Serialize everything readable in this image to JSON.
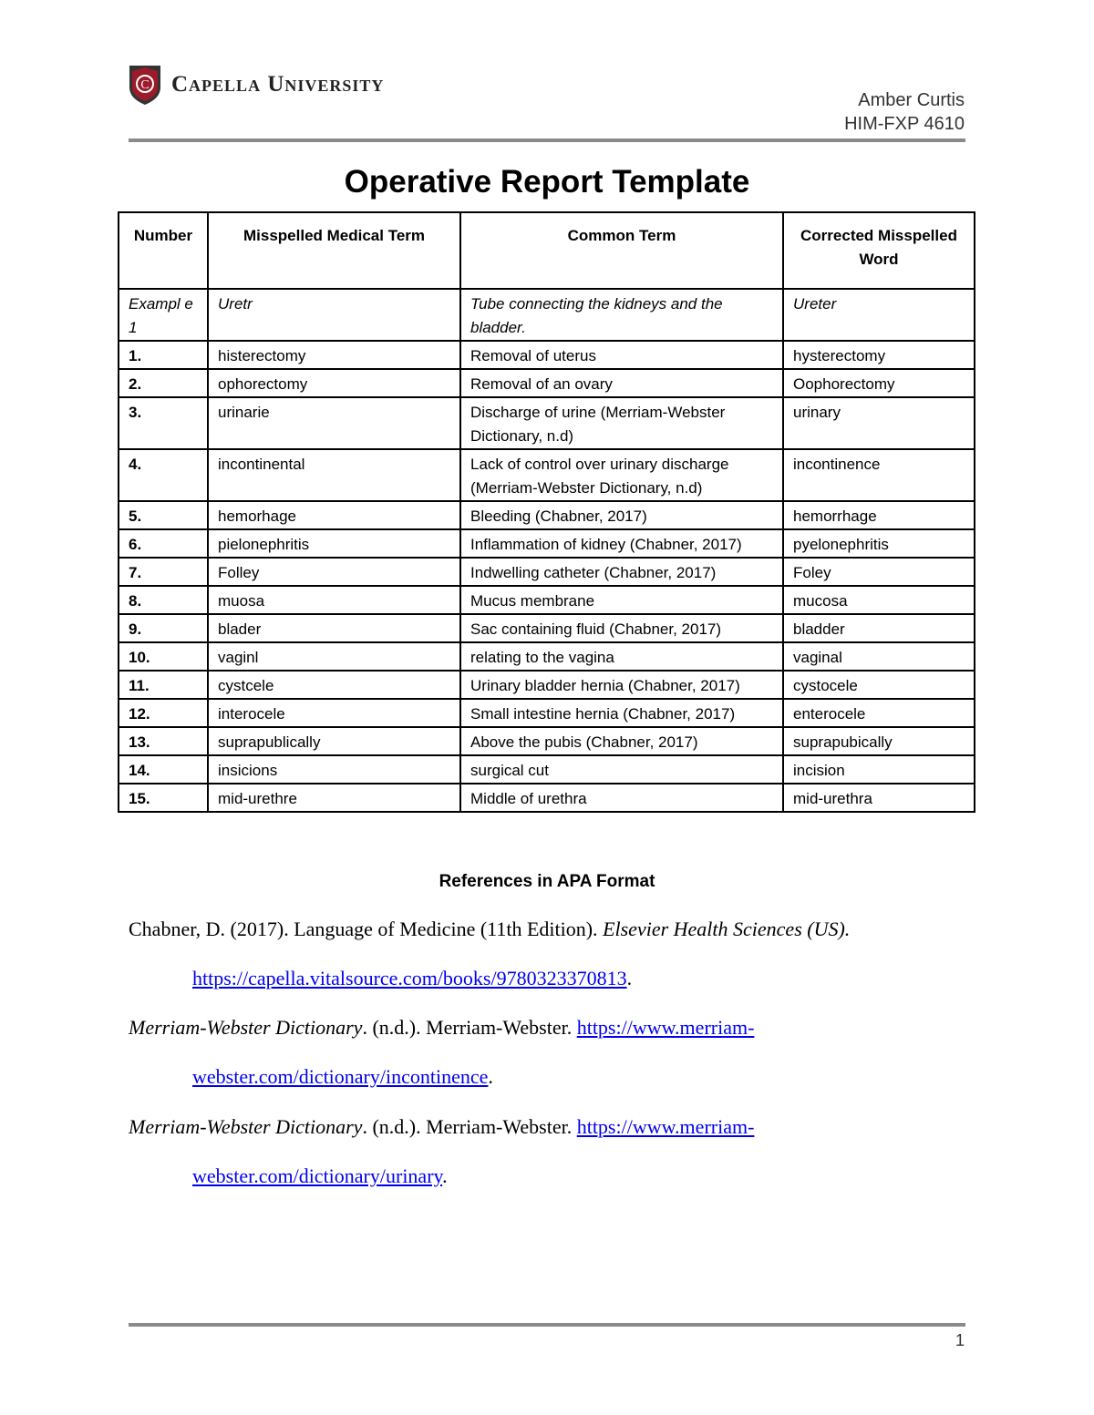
{
  "header": {
    "logo_text": "Capella University",
    "author": "Amber Curtis",
    "course": "HIM-FXP 4610"
  },
  "title": "Operative Report Template",
  "table": {
    "headers": [
      "Number",
      "Misspelled Medical Term",
      "Common Term",
      "Corrected Misspelled Word"
    ],
    "example": {
      "number": "Exampl e 1",
      "misspelled": "Uretr",
      "common": "Tube connecting the kidneys and the bladder.",
      "corrected": "Ureter"
    },
    "rows": [
      {
        "number": "1.",
        "misspelled": "histerectomy",
        "common": "Removal of uterus",
        "corrected": "hysterectomy"
      },
      {
        "number": "2.",
        "misspelled": "ophorectomy",
        "common": "Removal  of an ovary",
        "corrected": "Oophorectomy"
      },
      {
        "number": "3.",
        "misspelled": "urinarie",
        "common": "Discharge of urine (Merriam-Webster Dictionary, n.d)",
        "corrected": "urinary"
      },
      {
        "number": "4.",
        "misspelled": "incontinental",
        "common": "Lack of control over urinary discharge (Merriam-Webster Dictionary, n.d)",
        "corrected": "incontinence"
      },
      {
        "number": "5.",
        "misspelled": "hemorhage",
        "common": " Bleeding (Chabner, 2017)",
        "corrected": "hemorrhage"
      },
      {
        "number": "6.",
        "misspelled": "pielonephritis",
        "common": "Inflammation of kidney (Chabner, 2017)",
        "corrected": "pyelonephritis"
      },
      {
        "number": "7.",
        "misspelled": "Folley",
        "common": "Indwelling catheter (Chabner, 2017)",
        "corrected": "Foley"
      },
      {
        "number": "8.",
        "misspelled": "muosa",
        "common": "Mucus membrane",
        "corrected": "mucosa"
      },
      {
        "number": "9.",
        "misspelled": "blader",
        "common": "Sac containing fluid (Chabner, 2017)",
        "corrected": "bladder"
      },
      {
        "number": "10.",
        "misspelled": "vaginl",
        "common": "relating to the vagina",
        "corrected": "vaginal"
      },
      {
        "number": "11.",
        "misspelled": "cystcele",
        "common": "Urinary bladder hernia (Chabner, 2017)",
        "corrected": "cystocele"
      },
      {
        "number": "12.",
        "misspelled": "interocele",
        "common": "Small intestine hernia (Chabner, 2017)",
        "corrected": "enterocele"
      },
      {
        "number": "13.",
        "misspelled": "suprapublically",
        "common": "Above the pubis (Chabner, 2017)",
        "corrected": "suprapubically"
      },
      {
        "number": "14.",
        "misspelled": "insicions",
        "common": "surgical cut",
        "corrected": "incision"
      },
      {
        "number": "15.",
        "misspelled": "mid-urethre",
        "common": "Middle of urethra",
        "corrected": "mid-urethra"
      }
    ]
  },
  "references": {
    "heading": "References in APA Format",
    "items": [
      {
        "pre": "Chabner, D. (2017). Language of Medicine (11th Edition). ",
        "italic": "Elsevier Health Sciences (US).",
        "link1": "",
        "link2": "https://capella.vitalsource.com/books/9780323370813",
        "post": "."
      },
      {
        "pre": ". (n.d.). Merriam-Webster. ",
        "italic": "Merriam-Webster Dictionary",
        "link1": "https://www.merriam-",
        "link2": "webster.com/dictionary/incontinence",
        "post": "."
      },
      {
        "pre": ". (n.d.). Merriam-Webster. ",
        "italic": "Merriam-Webster Dictionary",
        "link1": "https://www.merriam-",
        "link2": "webster.com/dictionary/urinary",
        "post": "."
      }
    ]
  },
  "footer": {
    "page_number": "1"
  },
  "colors": {
    "brand_red": "#9b1b2a",
    "link": "#0000ee",
    "rule": "#8a8a8a"
  }
}
